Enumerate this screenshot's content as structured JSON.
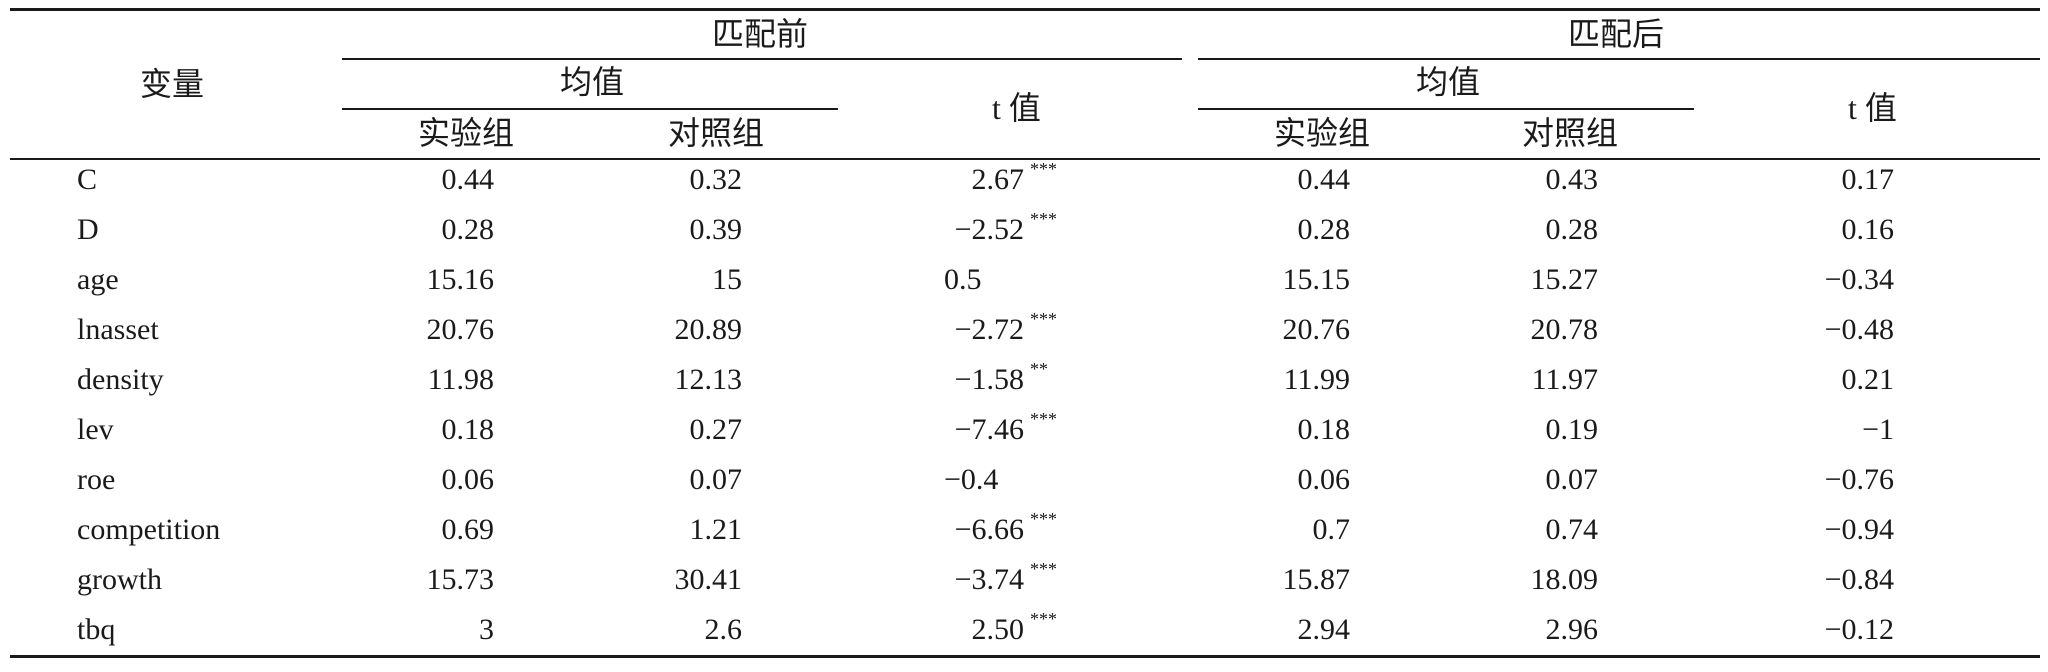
{
  "table": {
    "headers": {
      "variable": "变量",
      "before": "匹配前",
      "after": "匹配后",
      "mean": "均值",
      "treatment": "实验组",
      "control": "对照组",
      "tvalue": "t 值"
    },
    "rows": [
      {
        "var": "C",
        "b_treat": "0.44",
        "b_ctrl": "0.32",
        "b_t": "2.67",
        "b_sig": "***",
        "a_treat": "0.44",
        "a_ctrl": "0.43",
        "a_t": "0.17"
      },
      {
        "var": "D",
        "b_treat": "0.28",
        "b_ctrl": "0.39",
        "b_t": "−2.52",
        "b_sig": "***",
        "a_treat": "0.28",
        "a_ctrl": "0.28",
        "a_t": "0.16"
      },
      {
        "var": "age",
        "b_treat": "15.16",
        "b_ctrl": "15",
        "b_t": "0.5",
        "b_sig": "",
        "a_treat": "15.15",
        "a_ctrl": "15.27",
        "a_t": "−0.34"
      },
      {
        "var": "lnasset",
        "b_treat": "20.76",
        "b_ctrl": "20.89",
        "b_t": "−2.72",
        "b_sig": "***",
        "a_treat": "20.76",
        "a_ctrl": "20.78",
        "a_t": "−0.48"
      },
      {
        "var": "density",
        "b_treat": "11.98",
        "b_ctrl": "12.13",
        "b_t": "−1.58",
        "b_sig": "**",
        "a_treat": "11.99",
        "a_ctrl": "11.97",
        "a_t": "0.21"
      },
      {
        "var": "lev",
        "b_treat": "0.18",
        "b_ctrl": "0.27",
        "b_t": "−7.46",
        "b_sig": "***",
        "a_treat": "0.18",
        "a_ctrl": "0.19",
        "a_t": "−1"
      },
      {
        "var": "roe",
        "b_treat": "0.06",
        "b_ctrl": "0.07",
        "b_t": "−0.4",
        "b_sig": "",
        "a_treat": "0.06",
        "a_ctrl": "0.07",
        "a_t": "−0.76"
      },
      {
        "var": "competition",
        "b_treat": "0.69",
        "b_ctrl": "1.21",
        "b_t": "−6.66",
        "b_sig": "***",
        "a_treat": "0.7",
        "a_ctrl": "0.74",
        "a_t": "−0.94"
      },
      {
        "var": "growth",
        "b_treat": "15.73",
        "b_ctrl": "30.41",
        "b_t": "−3.74",
        "b_sig": "***",
        "a_treat": "15.87",
        "a_ctrl": "18.09",
        "a_t": "−0.84"
      },
      {
        "var": "tbq",
        "b_treat": "3",
        "b_ctrl": "2.6",
        "b_t": "2.50",
        "b_sig": "***",
        "a_treat": "2.94",
        "a_ctrl": "2.96",
        "a_t": "−0.12"
      }
    ]
  }
}
